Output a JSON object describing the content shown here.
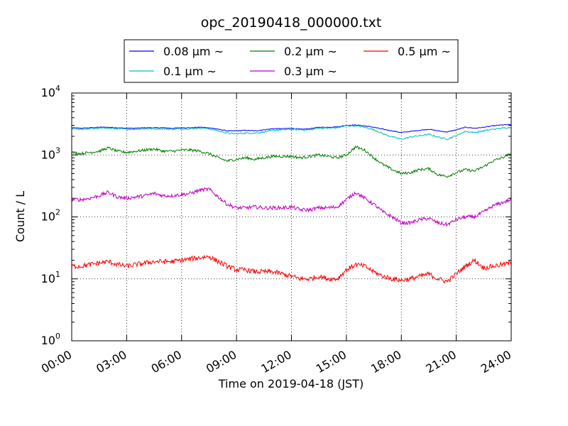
{
  "chart_data": {
    "type": "line",
    "title": "opc_20190418_000000.txt",
    "xlabel": "Time on 2019-04-18 (JST)",
    "ylabel": "Count / L",
    "x_scale": "time (hours)",
    "y_scale": "log",
    "xlim": [
      0,
      24
    ],
    "ylim": [
      1,
      10000
    ],
    "grid": true,
    "legend_position": "top-center (above plot)",
    "x_tick_labels": [
      "00:00",
      "03:00",
      "06:00",
      "09:00",
      "12:00",
      "15:00",
      "18:00",
      "21:00",
      "24:00"
    ],
    "y_tick_labels": [
      {
        "base": "10",
        "exp": "0"
      },
      {
        "base": "10",
        "exp": "1"
      },
      {
        "base": "10",
        "exp": "2"
      },
      {
        "base": "10",
        "exp": "3"
      },
      {
        "base": "10",
        "exp": "4"
      }
    ],
    "x_hours": [
      0,
      0.5,
      1,
      1.5,
      2,
      2.5,
      3,
      3.5,
      4,
      4.5,
      5,
      5.5,
      6,
      6.5,
      7,
      7.5,
      8,
      8.5,
      9,
      9.5,
      10,
      10.5,
      11,
      11.5,
      12,
      12.5,
      13,
      13.5,
      14,
      14.5,
      15,
      15.5,
      16,
      16.5,
      17,
      17.5,
      18,
      18.5,
      19,
      19.5,
      20,
      20.5,
      21,
      21.5,
      22,
      22.5,
      23,
      23.5,
      24
    ],
    "series": [
      {
        "name": "0.08 μm ~",
        "color": "#0000ff",
        "values": [
          2750,
          2700,
          2750,
          2800,
          2800,
          2750,
          2700,
          2700,
          2750,
          2750,
          2750,
          2700,
          2750,
          2750,
          2800,
          2750,
          2600,
          2450,
          2450,
          2500,
          2450,
          2550,
          2650,
          2650,
          2700,
          2600,
          2650,
          2800,
          2800,
          2850,
          3000,
          3050,
          2950,
          2800,
          2600,
          2450,
          2300,
          2400,
          2500,
          2600,
          2450,
          2350,
          2550,
          2800,
          2700,
          2800,
          2950,
          3050,
          3100
        ]
      },
      {
        "name": "0.1 μm ~",
        "color": "#00bfbf",
        "values": [
          2650,
          2600,
          2650,
          2700,
          2700,
          2650,
          2600,
          2600,
          2650,
          2650,
          2650,
          2600,
          2650,
          2650,
          2700,
          2650,
          2450,
          2250,
          2200,
          2250,
          2250,
          2350,
          2500,
          2550,
          2600,
          2550,
          2550,
          2700,
          2700,
          2750,
          2950,
          2950,
          2800,
          2550,
          2200,
          1950,
          1800,
          1950,
          2050,
          2150,
          1950,
          1800,
          2050,
          2400,
          2300,
          2450,
          2600,
          2700,
          2800
        ]
      },
      {
        "name": "0.2 μm ~",
        "color": "#008000",
        "values": [
          1100,
          1050,
          1100,
          1150,
          1300,
          1150,
          1100,
          1150,
          1200,
          1250,
          1150,
          1150,
          1200,
          1200,
          1150,
          1050,
          900,
          800,
          850,
          900,
          850,
          900,
          950,
          950,
          950,
          900,
          950,
          1000,
          950,
          900,
          1000,
          1350,
          1200,
          900,
          700,
          580,
          500,
          520,
          580,
          600,
          480,
          450,
          520,
          580,
          550,
          650,
          800,
          900,
          1050
        ]
      },
      {
        "name": "0.3 μm ~",
        "color": "#bf00bf",
        "values": [
          190,
          190,
          200,
          220,
          250,
          210,
          200,
          210,
          220,
          240,
          220,
          220,
          230,
          240,
          270,
          280,
          210,
          160,
          140,
          140,
          145,
          140,
          140,
          140,
          145,
          130,
          130,
          140,
          140,
          145,
          190,
          250,
          200,
          160,
          120,
          100,
          80,
          80,
          90,
          95,
          80,
          75,
          90,
          100,
          100,
          120,
          150,
          170,
          190
        ]
      },
      {
        "name": "0.5 μm ~",
        "color": "#ff0000",
        "values": [
          16,
          16,
          17,
          18,
          19,
          17,
          16,
          17,
          18,
          19,
          19,
          19,
          20,
          21,
          22,
          23,
          19,
          16,
          14,
          14,
          13,
          13,
          13,
          12,
          11,
          10,
          10,
          11,
          10,
          10,
          14,
          17,
          16,
          13,
          11,
          10,
          9.5,
          10,
          11,
          12,
          10,
          9,
          12,
          16,
          20,
          15,
          16,
          17,
          18
        ]
      }
    ]
  }
}
